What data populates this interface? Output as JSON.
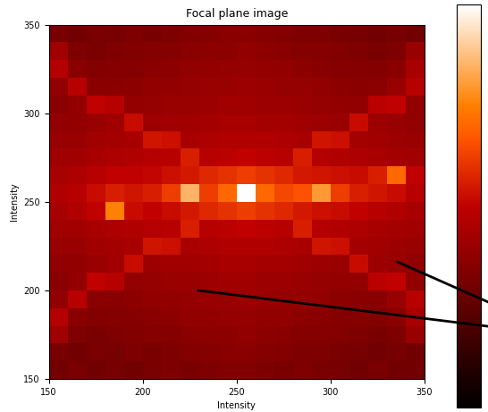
{
  "chart_data": {
    "type": "heatmap",
    "title": "Focal plane image",
    "x_label": "Intensity",
    "y_label": "Intensity",
    "xlim": [
      150,
      350
    ],
    "ylim": [
      150,
      350
    ],
    "xticks": [
      150,
      200,
      250,
      300,
      350
    ],
    "yticks": [
      150,
      200,
      250,
      300,
      350
    ],
    "color_range": [
      0,
      1
    ],
    "cells": [
      [
        0.3,
        0.32,
        0.3,
        0.31,
        0.3,
        0.32,
        0.33,
        0.32,
        0.33,
        0.34,
        0.34,
        0.33,
        0.32,
        0.33,
        0.32,
        0.31,
        0.3,
        0.32,
        0.3,
        0.3
      ],
      [
        0.31,
        0.3,
        0.32,
        0.31,
        0.33,
        0.32,
        0.33,
        0.34,
        0.35,
        0.36,
        0.36,
        0.35,
        0.34,
        0.33,
        0.33,
        0.32,
        0.31,
        0.3,
        0.31,
        0.3
      ],
      [
        0.42,
        0.33,
        0.32,
        0.33,
        0.34,
        0.35,
        0.35,
        0.36,
        0.37,
        0.37,
        0.38,
        0.37,
        0.36,
        0.35,
        0.35,
        0.34,
        0.33,
        0.32,
        0.33,
        0.4
      ],
      [
        0.47,
        0.36,
        0.34,
        0.35,
        0.35,
        0.36,
        0.37,
        0.38,
        0.38,
        0.39,
        0.39,
        0.38,
        0.38,
        0.37,
        0.36,
        0.35,
        0.35,
        0.34,
        0.36,
        0.44
      ],
      [
        0.38,
        0.48,
        0.36,
        0.36,
        0.37,
        0.38,
        0.38,
        0.39,
        0.4,
        0.4,
        0.41,
        0.4,
        0.39,
        0.39,
        0.38,
        0.37,
        0.36,
        0.36,
        0.4,
        0.48
      ],
      [
        0.36,
        0.38,
        0.5,
        0.48,
        0.38,
        0.39,
        0.4,
        0.4,
        0.41,
        0.42,
        0.42,
        0.41,
        0.41,
        0.4,
        0.39,
        0.38,
        0.38,
        0.49,
        0.5,
        0.38
      ],
      [
        0.38,
        0.38,
        0.4,
        0.42,
        0.52,
        0.41,
        0.42,
        0.42,
        0.43,
        0.44,
        0.44,
        0.43,
        0.43,
        0.42,
        0.41,
        0.4,
        0.52,
        0.41,
        0.4,
        0.38
      ],
      [
        0.4,
        0.4,
        0.42,
        0.43,
        0.44,
        0.54,
        0.53,
        0.44,
        0.45,
        0.46,
        0.46,
        0.46,
        0.45,
        0.44,
        0.54,
        0.53,
        0.43,
        0.42,
        0.41,
        0.4
      ],
      [
        0.42,
        0.42,
        0.44,
        0.45,
        0.46,
        0.47,
        0.48,
        0.56,
        0.48,
        0.49,
        0.5,
        0.49,
        0.48,
        0.56,
        0.47,
        0.46,
        0.45,
        0.44,
        0.43,
        0.42
      ],
      [
        0.44,
        0.46,
        0.5,
        0.75,
        0.52,
        0.5,
        0.52,
        0.55,
        0.58,
        0.6,
        0.62,
        0.6,
        0.58,
        0.55,
        0.53,
        0.52,
        0.5,
        0.48,
        0.46,
        0.44
      ],
      [
        0.46,
        0.48,
        0.52,
        0.56,
        0.54,
        0.56,
        0.62,
        0.85,
        0.62,
        0.7,
        1.0,
        0.7,
        0.64,
        0.66,
        0.8,
        0.62,
        0.56,
        0.54,
        0.52,
        0.48
      ],
      [
        0.44,
        0.45,
        0.48,
        0.5,
        0.5,
        0.51,
        0.53,
        0.55,
        0.58,
        0.6,
        0.62,
        0.6,
        0.58,
        0.55,
        0.54,
        0.53,
        0.52,
        0.56,
        0.7,
        0.5
      ],
      [
        0.42,
        0.42,
        0.44,
        0.45,
        0.46,
        0.47,
        0.48,
        0.56,
        0.48,
        0.49,
        0.5,
        0.49,
        0.48,
        0.56,
        0.47,
        0.46,
        0.45,
        0.44,
        0.43,
        0.42
      ],
      [
        0.4,
        0.4,
        0.42,
        0.43,
        0.44,
        0.54,
        0.53,
        0.44,
        0.45,
        0.46,
        0.46,
        0.46,
        0.45,
        0.44,
        0.54,
        0.53,
        0.43,
        0.42,
        0.41,
        0.4
      ],
      [
        0.38,
        0.38,
        0.4,
        0.42,
        0.52,
        0.41,
        0.42,
        0.42,
        0.43,
        0.44,
        0.44,
        0.43,
        0.43,
        0.42,
        0.41,
        0.4,
        0.52,
        0.41,
        0.4,
        0.38
      ],
      [
        0.36,
        0.38,
        0.5,
        0.48,
        0.38,
        0.39,
        0.4,
        0.4,
        0.41,
        0.42,
        0.42,
        0.41,
        0.41,
        0.4,
        0.39,
        0.38,
        0.38,
        0.49,
        0.5,
        0.38
      ],
      [
        0.38,
        0.48,
        0.36,
        0.36,
        0.37,
        0.38,
        0.38,
        0.39,
        0.4,
        0.4,
        0.41,
        0.4,
        0.39,
        0.39,
        0.38,
        0.37,
        0.36,
        0.36,
        0.4,
        0.48
      ],
      [
        0.47,
        0.36,
        0.34,
        0.35,
        0.35,
        0.36,
        0.37,
        0.38,
        0.38,
        0.39,
        0.39,
        0.38,
        0.38,
        0.37,
        0.36,
        0.35,
        0.35,
        0.34,
        0.36,
        0.44
      ],
      [
        0.42,
        0.33,
        0.32,
        0.33,
        0.34,
        0.35,
        0.35,
        0.36,
        0.37,
        0.37,
        0.38,
        0.37,
        0.36,
        0.35,
        0.35,
        0.34,
        0.33,
        0.32,
        0.33,
        0.4
      ],
      [
        0.31,
        0.3,
        0.32,
        0.31,
        0.33,
        0.32,
        0.33,
        0.34,
        0.35,
        0.36,
        0.36,
        0.35,
        0.34,
        0.33,
        0.33,
        0.32,
        0.31,
        0.3,
        0.31,
        0.3
      ]
    ]
  }
}
